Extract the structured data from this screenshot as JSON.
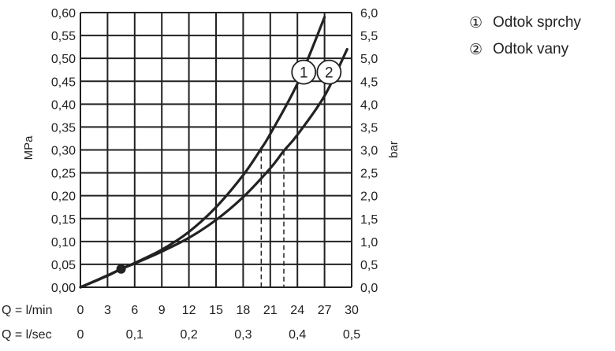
{
  "chart_data": {
    "type": "line",
    "x_unit_label": "Q = l/min",
    "x_ticks": [
      "0",
      "3",
      "6",
      "9",
      "12",
      "15",
      "18",
      "21",
      "24",
      "27",
      "30"
    ],
    "x2_unit_label": "Q = l/sec",
    "x2_ticks": [
      "0",
      "0,1",
      "0,2",
      "0,3",
      "0,4",
      "0,5"
    ],
    "xlim": [
      0,
      30
    ],
    "ylabel": "MPa",
    "y_ticks": [
      "0,00",
      "0,05",
      "0,10",
      "0,15",
      "0,20",
      "0,25",
      "0,30",
      "0,35",
      "0,40",
      "0,45",
      "0,50",
      "0,55",
      "0,60"
    ],
    "ylim": [
      0,
      0.6
    ],
    "y2label": "bar",
    "y2_ticks": [
      "0,0",
      "0,5",
      "1,0",
      "1,5",
      "2,0",
      "2,5",
      "3,0",
      "3,5",
      "4,0",
      "4,5",
      "5,0",
      "5,5",
      "6,0"
    ],
    "grid": true,
    "legend_position": "top-right",
    "series": [
      {
        "name": "Odtok sprchy",
        "marker": "1",
        "x": [
          0,
          3,
          4.5,
          6,
          9,
          12,
          15,
          18,
          20,
          21,
          24,
          27
        ],
        "y": [
          0,
          0.025,
          0.04,
          0.053,
          0.082,
          0.121,
          0.175,
          0.245,
          0.303,
          0.335,
          0.445,
          0.59
        ]
      },
      {
        "name": "Odtok vany",
        "marker": "2",
        "x": [
          0,
          3,
          4.5,
          6,
          9,
          12,
          15,
          18,
          21,
          22.5,
          24,
          27,
          29.5
        ],
        "y": [
          0,
          0.026,
          0.04,
          0.052,
          0.078,
          0.108,
          0.147,
          0.197,
          0.26,
          0.298,
          0.333,
          0.418,
          0.52
        ]
      }
    ],
    "annotations": {
      "operating_point": {
        "x": 4.5,
        "y": 0.04
      },
      "dashed_drops": [
        {
          "x": 20,
          "y": 0.303
        },
        {
          "x": 22.5,
          "y": 0.298
        }
      ]
    }
  },
  "colors": {
    "line": "#222222",
    "grid": "#222222",
    "background": "#ffffff"
  },
  "legend": {
    "items": [
      {
        "marker": "①",
        "label": "Odtok sprchy"
      },
      {
        "marker": "②",
        "label": "Odtok vany"
      }
    ]
  }
}
